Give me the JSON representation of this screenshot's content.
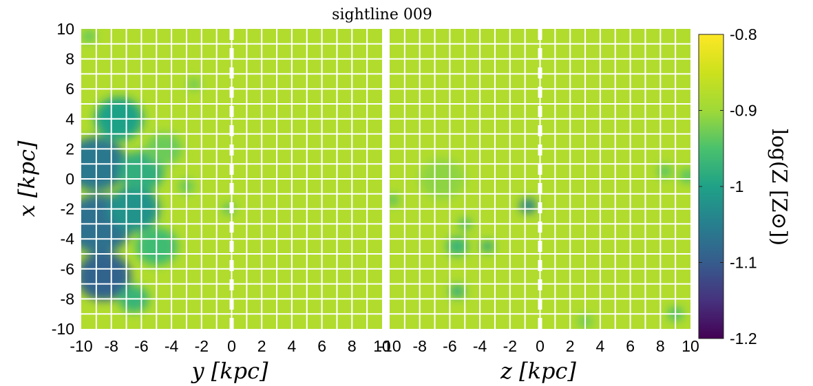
{
  "chart_data": {
    "type": "heatmap",
    "title": "sightline 009",
    "panels": [
      {
        "id": "left",
        "xlabel": "y [kpc]",
        "ylabel": "x [kpc]",
        "xlim": [
          -10,
          10
        ],
        "ylim": [
          -10,
          10
        ],
        "xticks": [
          -10,
          -8,
          -6,
          -4,
          -2,
          0,
          2,
          4,
          6,
          8,
          10
        ],
        "yticks": [
          -10,
          -8,
          -6,
          -4,
          -2,
          0,
          2,
          4,
          6,
          8,
          10
        ],
        "grid": true,
        "grid_step": 1,
        "dashed_line_at": 0,
        "background_value": -0.88,
        "features": [
          {
            "x": -9.0,
            "y": 1.0,
            "r": 2.0,
            "v": -1.06
          },
          {
            "x": -8.8,
            "y": -3.0,
            "r": 2.2,
            "v": -1.07
          },
          {
            "x": -8.5,
            "y": -6.5,
            "r": 1.8,
            "v": -1.09
          },
          {
            "x": -7.5,
            "y": 4.0,
            "r": 1.6,
            "v": -1.0
          },
          {
            "x": -6.5,
            "y": -2.0,
            "r": 1.7,
            "v": -1.02
          },
          {
            "x": -6.0,
            "y": 0.5,
            "r": 1.5,
            "v": -0.98
          },
          {
            "x": -5.0,
            "y": -4.5,
            "r": 1.4,
            "v": -0.96
          },
          {
            "x": -4.5,
            "y": 2.0,
            "r": 1.2,
            "v": -0.93
          },
          {
            "x": -6.5,
            "y": -8.0,
            "r": 1.0,
            "v": -0.97
          },
          {
            "x": -9.5,
            "y": 9.5,
            "r": 0.4,
            "v": -0.95
          },
          {
            "x": -2.5,
            "y": 6.3,
            "r": 0.35,
            "v": -0.95
          },
          {
            "x": -3.0,
            "y": -0.5,
            "r": 0.5,
            "v": -0.94
          },
          {
            "x": -0.2,
            "y": -2.0,
            "r": 0.35,
            "v": -0.97
          }
        ],
        "colorscale": "viridis"
      },
      {
        "id": "right",
        "xlabel": "z [kpc]",
        "xlim": [
          -10,
          10
        ],
        "ylim": [
          -10,
          10
        ],
        "xticks": [
          -10,
          -8,
          -6,
          -4,
          -2,
          0,
          2,
          4,
          6,
          8,
          10
        ],
        "grid": true,
        "grid_step": 1,
        "dashed_line_at": 0,
        "background_value": -0.88,
        "features": [
          {
            "x": -0.8,
            "y": -1.8,
            "r": 0.55,
            "v": -1.05
          },
          {
            "x": -5.5,
            "y": -4.5,
            "r": 0.7,
            "v": -0.97
          },
          {
            "x": -3.5,
            "y": -4.5,
            "r": 0.4,
            "v": -1.0
          },
          {
            "x": -5.0,
            "y": -3.0,
            "r": 0.4,
            "v": -0.97
          },
          {
            "x": -5.5,
            "y": -7.5,
            "r": 0.5,
            "v": -0.98
          },
          {
            "x": 8.3,
            "y": 0.5,
            "r": 0.45,
            "v": -0.95
          },
          {
            "x": 9.8,
            "y": 0.2,
            "r": 0.5,
            "v": -0.95
          },
          {
            "x": 9.0,
            "y": -9.0,
            "r": 0.5,
            "v": -0.96
          },
          {
            "x": 3.0,
            "y": -9.5,
            "r": 0.5,
            "v": -0.93
          },
          {
            "x": -6.5,
            "y": 0.0,
            "r": 1.5,
            "v": -0.91
          },
          {
            "x": -9.8,
            "y": -1.4,
            "r": 0.35,
            "v": -0.97
          }
        ],
        "colorscale": "viridis"
      }
    ],
    "colorbar": {
      "label": "log(Z [Z⊙])",
      "range": [
        -1.2,
        -0.8
      ],
      "ticks": [
        -1.2,
        -1.1,
        -1,
        -0.9,
        -0.8
      ]
    }
  }
}
